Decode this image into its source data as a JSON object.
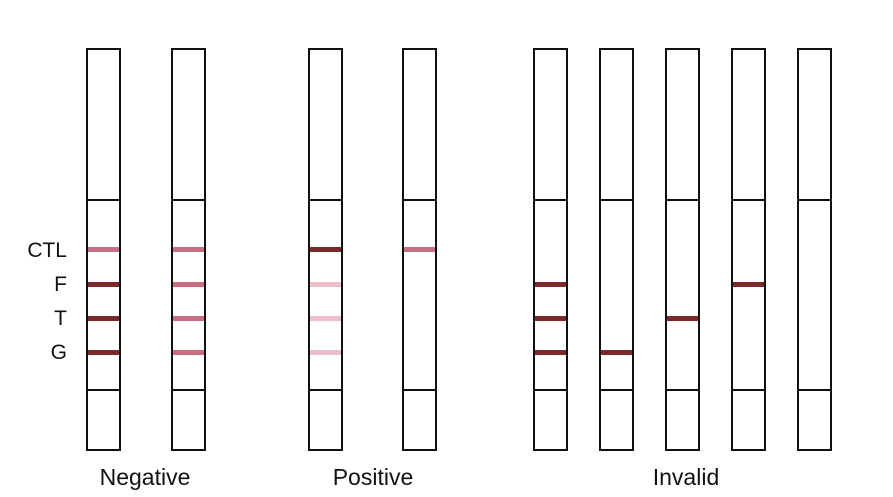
{
  "line_labels": [
    "CTL",
    "F",
    "T",
    "G"
  ],
  "colors": {
    "dark": "#7a2a2a",
    "medium": "#c96e80",
    "light": "#edbfcb",
    "outline": "#111111"
  },
  "groups": [
    {
      "label": "Negative",
      "strips": [
        {
          "bands": [
            "medium",
            "dark",
            "dark",
            "dark"
          ]
        },
        {
          "bands": [
            "medium",
            "medium",
            "medium",
            "medium"
          ]
        }
      ]
    },
    {
      "label": "Positive",
      "strips": [
        {
          "bands": [
            "dark",
            "light",
            "light",
            "light"
          ]
        },
        {
          "bands": [
            "medium",
            null,
            null,
            null
          ]
        }
      ]
    },
    {
      "label": "Invalid",
      "strips": [
        {
          "bands": [
            null,
            "dark",
            "dark",
            "dark"
          ]
        },
        {
          "bands": [
            null,
            null,
            null,
            "dark"
          ]
        },
        {
          "bands": [
            null,
            null,
            "dark",
            null
          ]
        },
        {
          "bands": [
            null,
            "dark",
            null,
            null
          ]
        },
        {
          "bands": [
            null,
            null,
            null,
            null
          ]
        }
      ]
    }
  ]
}
